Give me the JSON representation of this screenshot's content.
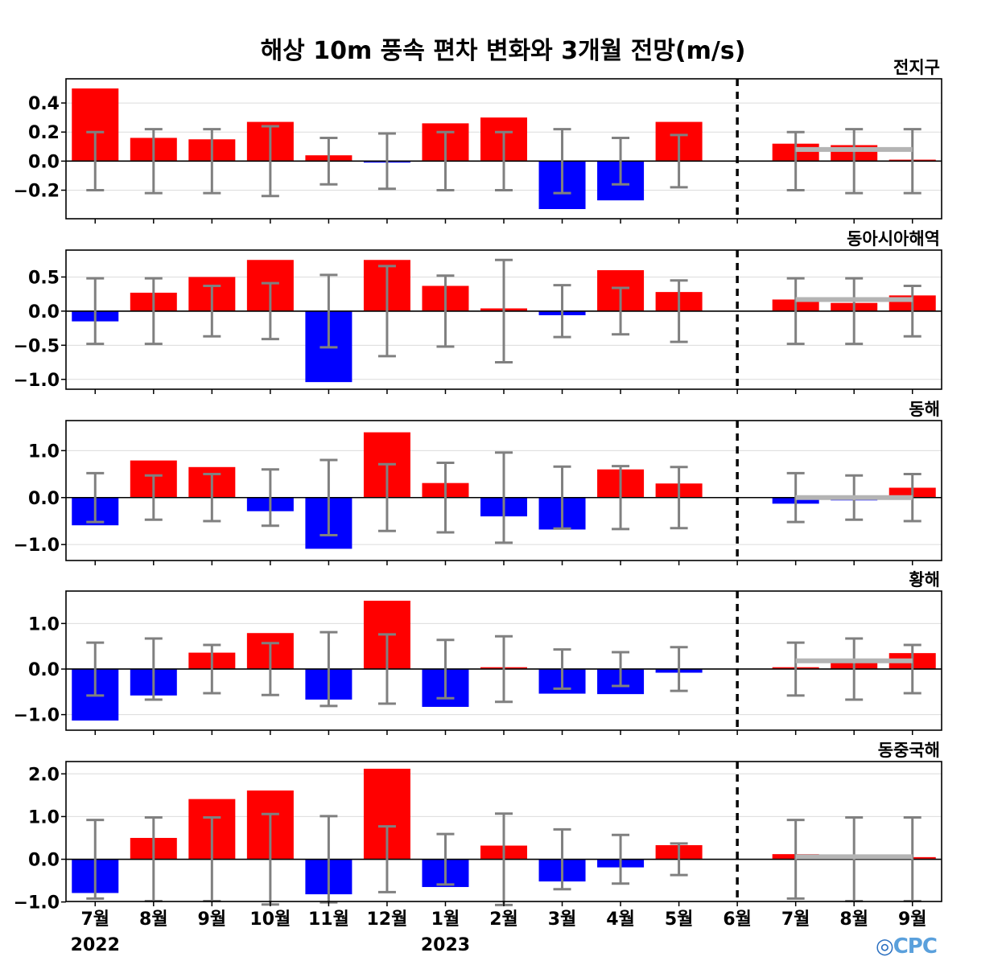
{
  "title": "해상 10m 풍속 편차 변화와 3개월 전망(m/s)",
  "colors": {
    "positive": "#ff0000",
    "negative": "#0000ff",
    "errorbar": "#808080",
    "outlook": "#b4b4b4"
  },
  "x_months": [
    "7월",
    "8월",
    "9월",
    "10월",
    "11월",
    "12월",
    "1월",
    "2월",
    "3월",
    "4월",
    "5월",
    "6월",
    "7월",
    "8월",
    "9월"
  ],
  "x_years": [
    {
      "index": 0,
      "label": "2022"
    },
    {
      "index": 6,
      "label": "2023"
    }
  ],
  "logo_text": "CPC",
  "chart_data": [
    {
      "type": "bar",
      "name": "전지구",
      "ylim": [
        -0.33,
        0.5
      ],
      "yticks": [
        -0.2,
        0.0,
        0.2,
        0.4
      ],
      "ytick_labels": [
        "−0.2",
        "0.0",
        "0.2",
        "0.4"
      ],
      "values": [
        0.5,
        0.16,
        0.15,
        0.27,
        0.04,
        -0.01,
        0.26,
        0.3,
        -0.33,
        -0.27,
        0.27,
        0.0,
        0.12,
        0.11,
        0.01
      ],
      "error": [
        0.2,
        0.22,
        0.22,
        0.24,
        0.16,
        0.19,
        0.2,
        0.2,
        0.22,
        0.16,
        0.18,
        null,
        0.2,
        0.22,
        0.22
      ],
      "outlook_level": 0.08
    },
    {
      "type": "bar",
      "name": "동아시아해역",
      "ylim": [
        -1.05,
        0.8
      ],
      "yticks": [
        -1.0,
        -0.5,
        0.0,
        0.5
      ],
      "ytick_labels": [
        "−1.0",
        "−0.5",
        "0.0",
        "0.5"
      ],
      "values": [
        -0.15,
        0.27,
        0.5,
        0.75,
        -1.04,
        0.75,
        0.37,
        0.04,
        -0.06,
        0.6,
        0.28,
        0.0,
        0.17,
        0.12,
        0.23
      ],
      "error": [
        0.48,
        0.48,
        0.37,
        0.41,
        0.53,
        0.66,
        0.52,
        0.75,
        0.38,
        0.34,
        0.45,
        null,
        0.48,
        0.48,
        0.37
      ],
      "outlook_level": 0.17
    },
    {
      "type": "bar",
      "name": "동해",
      "ylim": [
        -1.1,
        1.4
      ],
      "yticks": [
        -1.0,
        0.0,
        1.0
      ],
      "ytick_labels": [
        "−1.0",
        "0.0",
        "1.0"
      ],
      "values": [
        -0.59,
        0.79,
        0.65,
        -0.29,
        -1.09,
        1.39,
        0.31,
        -0.4,
        -0.68,
        0.6,
        0.3,
        0.0,
        -0.13,
        -0.06,
        0.21
      ],
      "error": [
        0.52,
        0.47,
        0.5,
        0.6,
        0.8,
        0.71,
        0.74,
        0.96,
        0.66,
        0.67,
        0.65,
        null,
        0.52,
        0.47,
        0.5
      ],
      "outlook_level": 0.0
    },
    {
      "type": "bar",
      "name": "황해",
      "ylim": [
        -1.13,
        1.5
      ],
      "yticks": [
        -1.0,
        0.0,
        1.0
      ],
      "ytick_labels": [
        "−1.0",
        "0.0",
        "1.0"
      ],
      "values": [
        -1.13,
        -0.58,
        0.36,
        0.79,
        -0.67,
        1.5,
        -0.83,
        0.04,
        -0.54,
        -0.55,
        -0.08,
        0.0,
        0.04,
        0.18,
        0.35
      ],
      "error": [
        0.58,
        0.67,
        0.53,
        0.57,
        0.81,
        0.76,
        0.64,
        0.72,
        0.43,
        0.37,
        0.48,
        null,
        0.58,
        0.67,
        0.53
      ],
      "outlook_level": 0.18
    },
    {
      "type": "bar",
      "name": "동중국해",
      "ylim": [
        -0.8,
        2.1
      ],
      "yticks": [
        -1.0,
        0.0,
        1.0,
        2.0
      ],
      "ytick_labels": [
        "−1.0",
        "0.0",
        "1.0",
        "2.0"
      ],
      "values": [
        -0.79,
        0.5,
        1.41,
        1.61,
        -0.82,
        2.12,
        -0.65,
        0.32,
        -0.52,
        -0.19,
        0.33,
        0.0,
        0.12,
        0.05,
        0.05
      ],
      "error": [
        0.92,
        0.98,
        0.98,
        1.06,
        1.01,
        0.77,
        0.59,
        1.07,
        0.7,
        0.57,
        0.37,
        null,
        0.92,
        0.98,
        0.98
      ],
      "outlook_level": 0.06
    }
  ]
}
